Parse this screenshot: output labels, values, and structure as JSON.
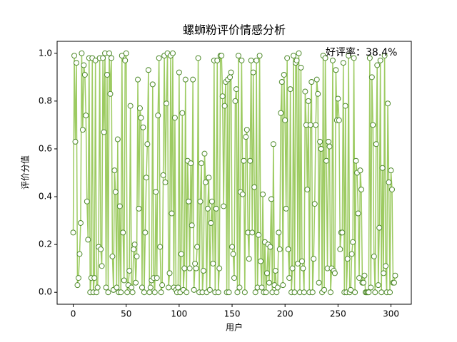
{
  "chart_data": {
    "type": "line",
    "title": "螺蛳粉评价情感分析",
    "xlabel": "用户",
    "ylabel": "评价分值",
    "annotation": "好评率：38.4%",
    "color": "#9dcb62",
    "marker_edge_color": "#4f8a2b",
    "marker_face_color": "#ffffff",
    "xlim": [
      -15.2,
      319.2
    ],
    "xticks": [
      0,
      50,
      100,
      150,
      200,
      250,
      300
    ],
    "ylim": [
      -0.05,
      1.05
    ],
    "yticks": [
      {
        "value": 0,
        "label": "0.0"
      },
      0.2,
      0.4,
      0.6,
      0.8,
      {
        "value": 1,
        "label": "1.0"
      }
    ],
    "grid": false,
    "x": [
      0,
      1,
      2,
      3,
      4,
      5,
      6,
      7,
      8,
      9,
      10,
      11,
      12,
      13,
      14,
      15,
      16,
      17,
      18,
      19,
      20,
      21,
      22,
      23,
      24,
      25,
      26,
      27,
      28,
      29,
      30,
      31,
      32,
      33,
      34,
      35,
      36,
      37,
      38,
      39,
      40,
      41,
      42,
      43,
      44,
      45,
      46,
      47,
      48,
      49,
      50,
      51,
      52,
      53,
      54,
      55,
      56,
      57,
      58,
      59,
      60,
      61,
      62,
      63,
      64,
      65,
      66,
      67,
      68,
      69,
      70,
      71,
      72,
      73,
      74,
      75,
      76,
      77,
      78,
      79,
      80,
      81,
      82,
      83,
      84,
      85,
      86,
      87,
      88,
      89,
      90,
      91,
      92,
      93,
      94,
      95,
      96,
      97,
      98,
      99,
      100,
      101,
      102,
      103,
      104,
      105,
      106,
      107,
      108,
      109,
      110,
      111,
      112,
      113,
      114,
      115,
      116,
      117,
      118,
      119,
      120,
      121,
      122,
      123,
      124,
      125,
      126,
      127,
      128,
      129,
      130,
      131,
      132,
      133,
      134,
      135,
      136,
      137,
      138,
      139,
      140,
      141,
      142,
      143,
      144,
      145,
      146,
      147,
      148,
      149,
      150,
      151,
      152,
      153,
      154,
      155,
      156,
      157,
      158,
      159,
      160,
      161,
      162,
      163,
      164,
      165,
      166,
      167,
      168,
      169,
      170,
      171,
      172,
      173,
      174,
      175,
      176,
      177,
      178,
      179,
      180,
      181,
      182,
      183,
      184,
      185,
      186,
      187,
      188,
      189,
      190,
      191,
      192,
      193,
      194,
      195,
      196,
      197,
      198,
      199,
      200,
      201,
      202,
      203,
      204,
      205,
      206,
      207,
      208,
      209,
      210,
      211,
      212,
      213,
      214,
      215,
      216,
      217,
      218,
      219,
      220,
      221,
      222,
      223,
      224,
      225,
      226,
      227,
      228,
      229,
      230,
      231,
      232,
      233,
      234,
      235,
      236,
      237,
      238,
      239,
      240,
      241,
      242,
      243,
      244,
      245,
      246,
      247,
      248,
      249,
      250,
      251,
      252,
      253,
      254,
      255,
      256,
      257,
      258,
      259,
      260,
      261,
      262,
      263,
      264,
      265,
      266,
      267,
      268,
      269,
      270,
      271,
      272,
      273,
      274,
      275,
      276,
      277,
      278,
      279,
      280,
      281,
      282,
      283,
      284,
      285,
      286,
      287,
      288,
      289,
      290,
      291,
      292,
      293,
      294,
      295,
      296,
      297,
      298,
      299,
      300,
      301,
      302,
      303,
      304
    ],
    "values": [
      0.25,
      0.99,
      0.63,
      0.96,
      0.03,
      0.06,
      0.16,
      0.29,
      1.0,
      0.68,
      0.95,
      0.91,
      0.74,
      0.38,
      0.22,
      0.98,
      0.0,
      0.06,
      0.98,
      0.0,
      0.06,
      0.97,
      0.0,
      0.02,
      0.19,
      0.98,
      0.18,
      0.11,
      0.98,
      0.67,
      1.0,
      0.02,
      0.91,
      0.0,
      1.0,
      0.83,
      0.98,
      0.15,
      0.01,
      0.51,
      0.42,
      0.02,
      0.64,
      0.0,
      0.36,
      0.0,
      0.99,
      0.25,
      0.05,
      0.97,
      1.0,
      0.0,
      0.03,
      0.09,
      0.78,
      0.02,
      0.0,
      0.18,
      0.2,
      0.04,
      0.15,
      0.89,
      0.35,
      0.77,
      0.73,
      0.02,
      0.69,
      0.0,
      0.25,
      0.48,
      0.62,
      0.93,
      0.0,
      0.02,
      0.05,
      0.87,
      0.06,
      0.0,
      0.42,
      0.06,
      0.74,
      0.98,
      0.19,
      0.0,
      0.03,
      0.49,
      0.99,
      0.46,
      0.79,
      1.0,
      0.02,
      0.08,
      0.99,
      0.33,
      1.0,
      0.02,
      0.73,
      0.01,
      0.0,
      0.02,
      0.92,
      0.0,
      0.16,
      0.75,
      0.01,
      0.1,
      0.89,
      0.0,
      0.55,
      0.38,
      0.1,
      0.54,
      0.28,
      0.89,
      0.01,
      0.12,
      0.1,
      0.19,
      0.98,
      0.0,
      0.38,
      0.54,
      0.0,
      0.09,
      0.58,
      0.46,
      0.0,
      0.35,
      0.48,
      0.01,
      0.29,
      0.38,
      0.12,
      0.97,
      0.0,
      0.35,
      0.97,
      0.0,
      0.1,
      0.99,
      0.99,
      0.82,
      0.36,
      0.78,
      0.88,
      0.0,
      0.89,
      0.0,
      0.9,
      0.92,
      0.19,
      0.16,
      0.06,
      0.8,
      0.85,
      0.0,
      0.99,
      0.02,
      0.42,
      0.97,
      0.41,
      0.55,
      0.0,
      0.65,
      0.68,
      0.25,
      0.14,
      0.55,
      0.97,
      0.25,
      0.92,
      0.44,
      0.0,
      0.97,
      0.02,
      0.24,
      0.99,
      0.13,
      0.02,
      0.41,
      0.0,
      0.21,
      0.0,
      0.08,
      0.2,
      0.04,
      0.19,
      0.39,
      0.0,
      0.62,
      0.03,
      0.09,
      0.0,
      0.02,
      0.25,
      0.18,
      0.75,
      0.88,
      0.03,
      0.91,
      0.72,
      0.35,
      0.98,
      0.18,
      0.06,
      0.85,
      0.0,
      0.1,
      0.99,
      0.0,
      0.96,
      0.97,
      0.12,
      1.0,
      0.0,
      0.94,
      0.13,
      0.1,
      0.0,
      0.84,
      0.7,
      0.43,
      0.8,
      0.0,
      0.7,
      0.88,
      0.0,
      0.14,
      0.37,
      0.7,
      0.89,
      0.83,
      0.04,
      0.63,
      0.6,
      0.0,
      0.99,
      0.01,
      0.98,
      0.55,
      0.1,
      0.63,
      0.61,
      0.0,
      0.1,
      0.97,
      0.09,
      0.08,
      0.93,
      0.72,
      0.81,
      0.72,
      0.18,
      0.25,
      0.25,
      0.96,
      0.0,
      0.78,
      0.0,
      0.14,
      0.99,
      0.0,
      0.01,
      0.16,
      0.21,
      0.98,
      0.0,
      0.55,
      0.5,
      0.33,
      0.06,
      0.51,
      0.43,
      0.04,
      0.04,
      0.07,
      0.0,
      0.0,
      0.0,
      0.0,
      0.98,
      0.02,
      0.9,
      0.7,
      0.15,
      0.0,
      0.62,
      0.95,
      0.03,
      0.27,
      0.97,
      0.0,
      0.52,
      0.08,
      0.99,
      0.11,
      0.0,
      0.79,
      0.46,
      0.0,
      0.51,
      0.43,
      0.04,
      0.04,
      0.07
    ]
  }
}
